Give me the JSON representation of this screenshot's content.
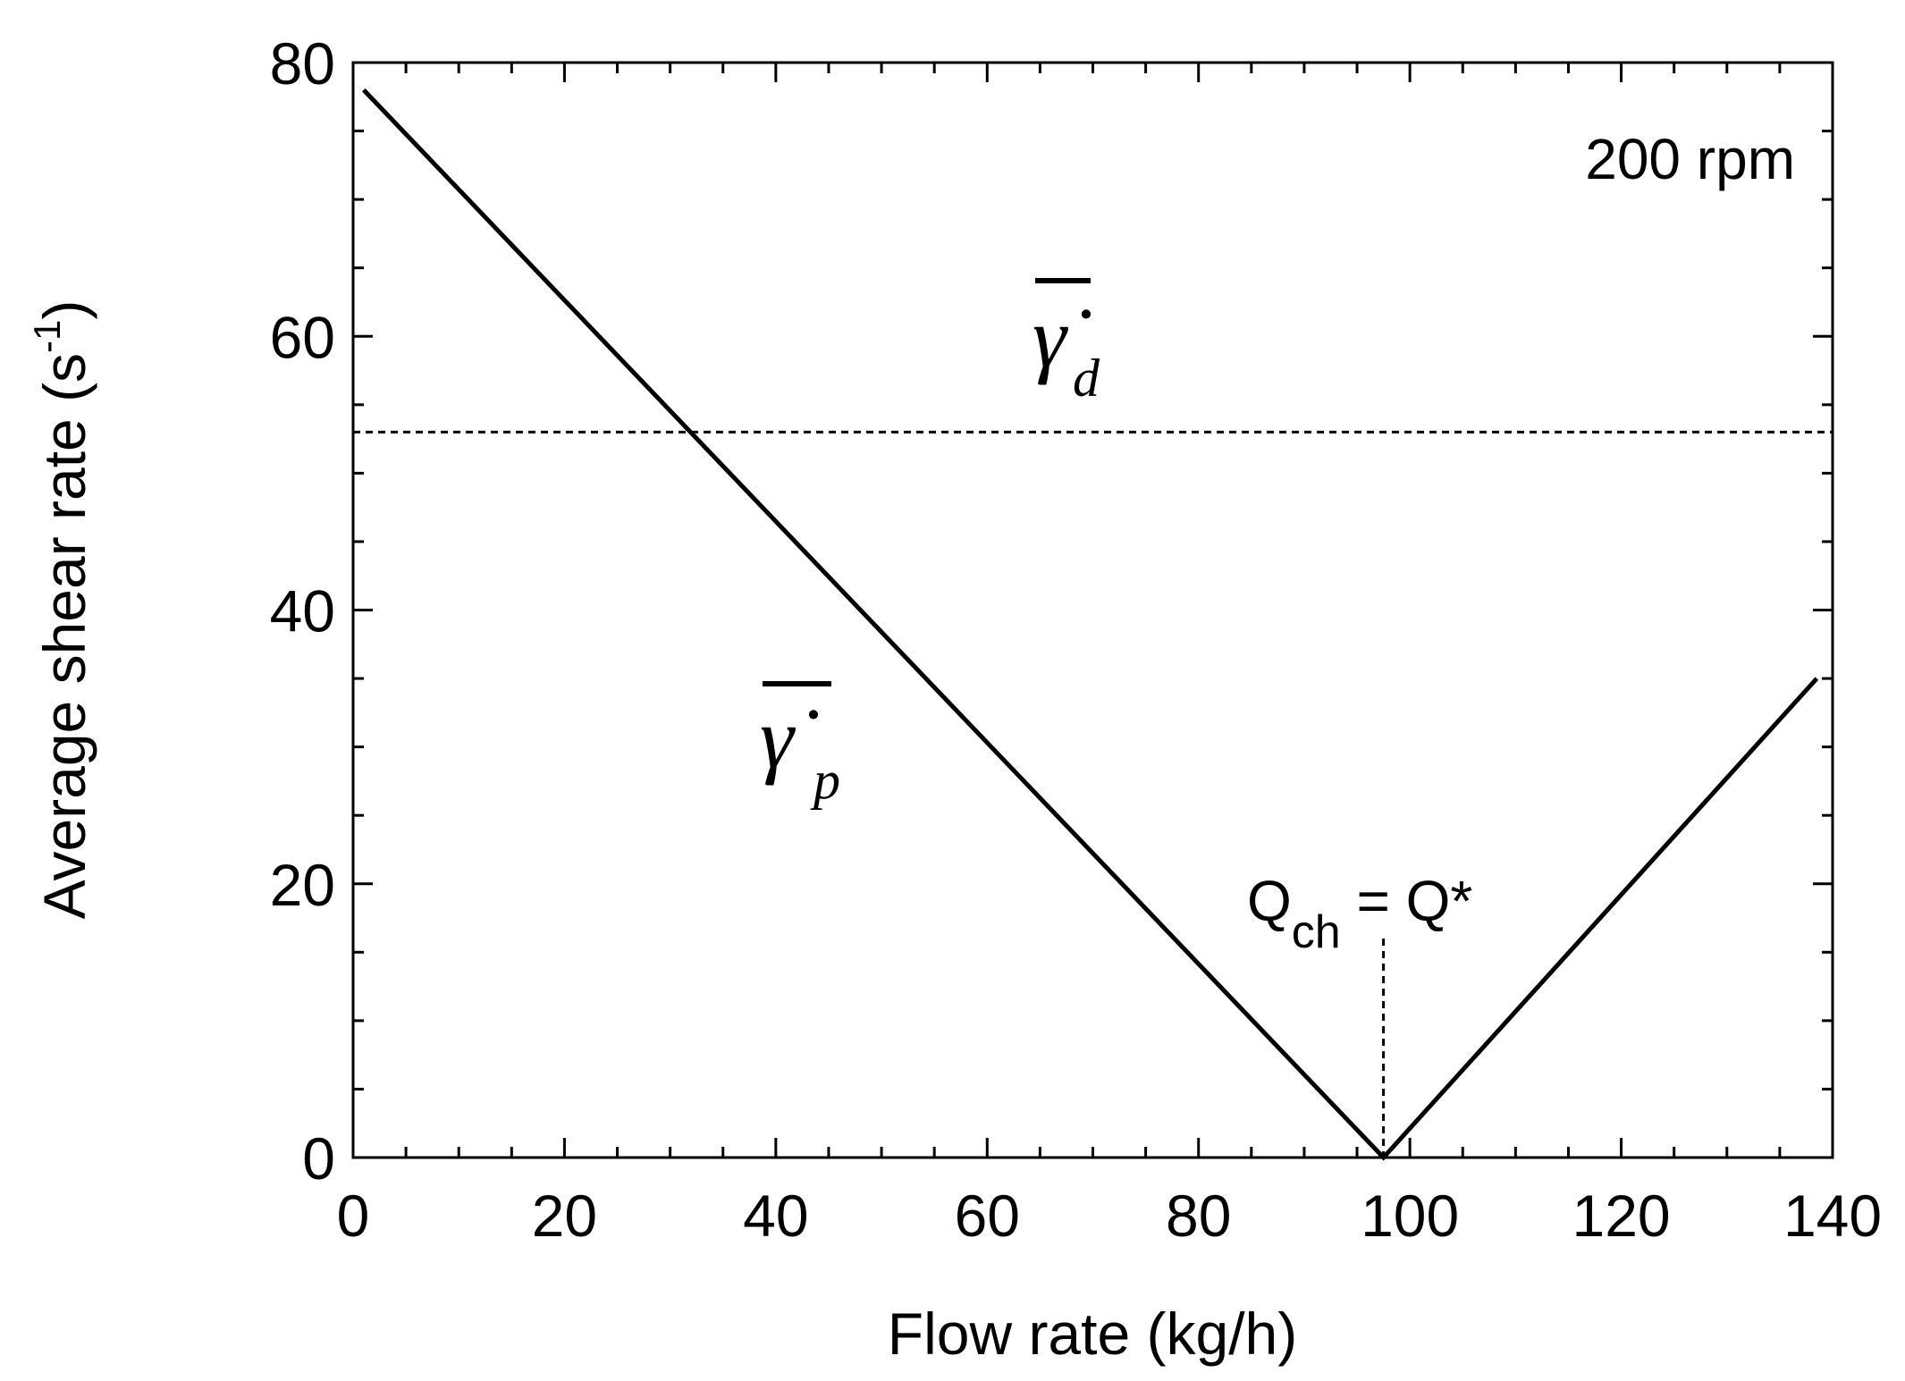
{
  "chart_data": {
    "type": "line",
    "xlabel": "Flow rate (kg/h)",
    "ylabel_main": "Average shear rate (s",
    "ylabel_sup": "-1",
    "ylabel_close": ")",
    "xlim": [
      0,
      140
    ],
    "ylim": [
      0,
      80
    ],
    "xticks": [
      "0",
      "20",
      "40",
      "60",
      "80",
      "100",
      "120",
      "140"
    ],
    "yticks": [
      "0",
      "20",
      "40",
      "60",
      "80"
    ],
    "grid": false,
    "series": [
      {
        "style": "solid",
        "x": [
          1,
          97.5,
          138.5
        ],
        "y": [
          78,
          0,
          35
        ]
      },
      {
        "style": "dashed",
        "x": [
          0,
          140
        ],
        "y": [
          53,
          53
        ]
      }
    ],
    "annotations": {
      "speed": "200 rpm",
      "gamma_d_symbol": "γ̇",
      "gamma_d_sub": "d",
      "gamma_p_symbol": "γ̇",
      "gamma_p_sub": "p",
      "q_main": "Q",
      "q_sub": "ch",
      "q_rest": " = Q*",
      "q_x": 97.5,
      "q_line_top": 16
    }
  }
}
